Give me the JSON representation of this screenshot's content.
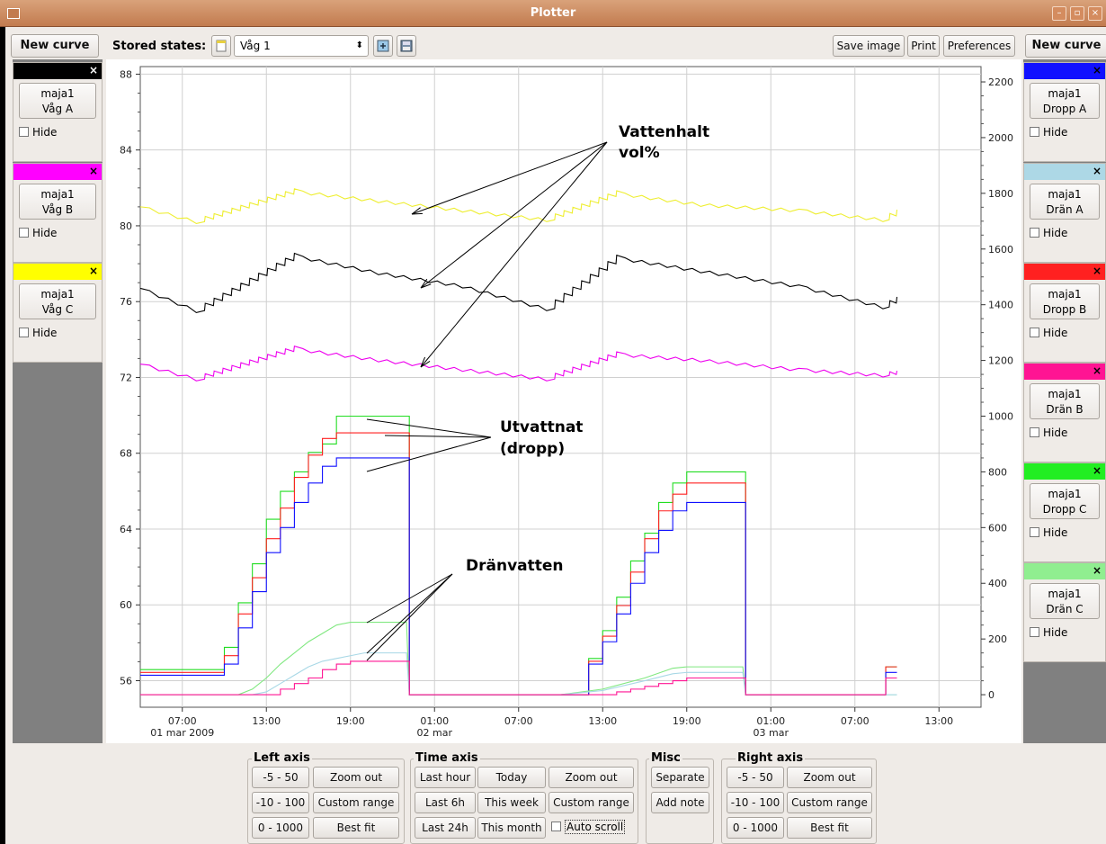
{
  "window": {
    "title": "Plotter"
  },
  "toolbar": {
    "new_curve_left": "New curve",
    "stored_states_label": "Stored states:",
    "stored_state_value": "Våg 1",
    "save_image": "Save image",
    "print": "Print",
    "preferences": "Preferences",
    "new_curve_right": "New curve"
  },
  "left_curves": [
    {
      "line1": "maja1",
      "line2": "Våg A",
      "hide": "Hide",
      "color": "#000000",
      "close": "×"
    },
    {
      "line1": "maja1",
      "line2": "Våg B",
      "hide": "Hide",
      "color": "#ff00ff",
      "close": "×"
    },
    {
      "line1": "maja1",
      "line2": "Våg C",
      "hide": "Hide",
      "color": "#ffff00",
      "close": "×"
    }
  ],
  "right_curves": [
    {
      "line1": "maja1",
      "line2": "Dropp A",
      "hide": "Hide",
      "color": "#1010ff",
      "close": "×"
    },
    {
      "line1": "maja1",
      "line2": "Drän A",
      "hide": "Hide",
      "color": "#add8e6",
      "close": "×"
    },
    {
      "line1": "maja1",
      "line2": "Dropp B",
      "hide": "Hide",
      "color": "#ff2020",
      "close": "×"
    },
    {
      "line1": "maja1",
      "line2": "Drän B",
      "hide": "Hide",
      "color": "#ff1493",
      "close": "×"
    },
    {
      "line1": "maja1",
      "line2": "Dropp C",
      "hide": "Hide",
      "color": "#22ee22",
      "close": "×"
    },
    {
      "line1": "maja1",
      "line2": "Drän C",
      "hide": "Hide",
      "color": "#90ee90",
      "close": "×"
    }
  ],
  "chart_data": {
    "type": "line",
    "title": "",
    "xlabel": "",
    "ylabel": "",
    "x_ticks": [
      {
        "t": 0,
        "line1": "07:00",
        "line2": "01 mar 2009"
      },
      {
        "t": 6,
        "line1": "13:00",
        "line2": ""
      },
      {
        "t": 12,
        "line1": "19:00",
        "line2": ""
      },
      {
        "t": 18,
        "line1": "01:00",
        "line2": "02 mar"
      },
      {
        "t": 24,
        "line1": "07:00",
        "line2": ""
      },
      {
        "t": 30,
        "line1": "13:00",
        "line2": ""
      },
      {
        "t": 36,
        "line1": "19:00",
        "line2": ""
      },
      {
        "t": 42,
        "line1": "01:00",
        "line2": "03 mar"
      },
      {
        "t": 48,
        "line1": "07:00",
        "line2": ""
      },
      {
        "t": 54,
        "line1": "13:00",
        "line2": ""
      }
    ],
    "xlim": [
      -3,
      57
    ],
    "left_ticks": [
      "88",
      "84",
      "80",
      "76",
      "72",
      "68",
      "64",
      "60",
      "56"
    ],
    "left_tick_values": [
      88,
      84,
      80,
      76,
      72,
      68,
      64,
      60,
      56
    ],
    "ylim_left": [
      54.6,
      88.4
    ],
    "right_ticks": [
      "2200",
      "2000",
      "1800",
      "1600",
      "1400",
      "1200",
      "1000",
      "800",
      "600",
      "400",
      "200",
      "0"
    ],
    "right_tick_values": [
      2200,
      2000,
      1800,
      1600,
      1400,
      1200,
      1000,
      800,
      600,
      400,
      200,
      0
    ],
    "ylim_right": [
      -45,
      2255
    ],
    "series": [
      {
        "name": "Våg A",
        "axis": "left",
        "color": "#000000",
        "style": "saw",
        "x": [
          -3,
          1,
          8,
          14,
          20,
          26,
          31,
          37,
          44,
          50,
          51
        ],
        "y": [
          76.7,
          75.5,
          78.4,
          77.5,
          76.8,
          75.6,
          78.3,
          77.6,
          76.8,
          75.7,
          76.1
        ]
      },
      {
        "name": "Våg B",
        "axis": "left",
        "color": "#ee00ee",
        "style": "saw",
        "x": [
          -3,
          1,
          8,
          14,
          20,
          26,
          31,
          37,
          44,
          50,
          51
        ],
        "y": [
          72.7,
          71.9,
          73.5,
          72.9,
          72.4,
          71.9,
          73.2,
          72.9,
          72.4,
          72.1,
          72.2
        ]
      },
      {
        "name": "Våg C",
        "axis": "left",
        "color": "#eeee30",
        "style": "saw",
        "x": [
          -3,
          1,
          8,
          14,
          20,
          26,
          31,
          37,
          44,
          50,
          51
        ],
        "y": [
          81.0,
          80.2,
          81.8,
          81.3,
          80.8,
          80.3,
          81.7,
          81.1,
          80.8,
          80.3,
          80.7
        ]
      },
      {
        "name": "Dropp C",
        "axis": "right",
        "color": "#22dd22",
        "style": "step",
        "x": [
          -3,
          2,
          3,
          4,
          5,
          6,
          7,
          8,
          9,
          10,
          11,
          12,
          16,
          16.2,
          20,
          28,
          29,
          30,
          31,
          32,
          33,
          34,
          35,
          36,
          40,
          40.2,
          50,
          50.2,
          51
        ],
        "y": [
          90,
          90,
          170,
          330,
          470,
          630,
          730,
          800,
          870,
          900,
          1000,
          1000,
          1000,
          0,
          0,
          0,
          130,
          230,
          350,
          480,
          580,
          690,
          760,
          800,
          800,
          0,
          0,
          100,
          100
        ]
      },
      {
        "name": "Dropp B",
        "axis": "right",
        "color": "#ff2020",
        "style": "step",
        "x": [
          -3,
          2,
          3,
          4,
          5,
          6,
          7,
          8,
          9,
          10,
          11,
          12,
          16,
          16.2,
          20,
          28,
          29,
          30,
          31,
          32,
          33,
          34,
          35,
          36,
          40,
          40.2,
          50,
          50.2,
          51
        ],
        "y": [
          80,
          80,
          140,
          290,
          420,
          560,
          670,
          780,
          860,
          920,
          940,
          940,
          940,
          0,
          0,
          0,
          120,
          210,
          320,
          440,
          560,
          660,
          720,
          760,
          760,
          0,
          0,
          100,
          100
        ]
      },
      {
        "name": "Dropp A",
        "axis": "right",
        "color": "#1010ff",
        "style": "step",
        "x": [
          -3,
          2,
          3,
          4,
          5,
          6,
          7,
          8,
          9,
          10,
          11,
          12,
          16,
          16.2,
          20,
          28,
          29,
          30,
          31,
          32,
          33,
          34,
          35,
          36,
          40,
          40.2,
          50,
          50.2,
          51
        ],
        "y": [
          70,
          70,
          110,
          240,
          370,
          510,
          600,
          690,
          760,
          820,
          850,
          850,
          850,
          0,
          0,
          0,
          110,
          190,
          290,
          400,
          510,
          590,
          660,
          690,
          690,
          0,
          0,
          80,
          80
        ]
      },
      {
        "name": "Drän C",
        "axis": "right",
        "color": "#80e880",
        "style": "curve",
        "x": [
          -3,
          4,
          5,
          6,
          7,
          8,
          9,
          10,
          11,
          12,
          13,
          14,
          15,
          16,
          16.2,
          20,
          27,
          30,
          33,
          35,
          36,
          40,
          40.2,
          51
        ],
        "y": [
          0,
          0,
          20,
          60,
          110,
          150,
          190,
          220,
          250,
          260,
          260,
          260,
          260,
          260,
          0,
          0,
          0,
          20,
          60,
          95,
          100,
          100,
          0,
          0
        ]
      },
      {
        "name": "Drän A",
        "axis": "right",
        "color": "#a8d8e6",
        "style": "curve",
        "x": [
          -3,
          5,
          6,
          7,
          8,
          9,
          10,
          11,
          12,
          13,
          14,
          15,
          16,
          16.2,
          20,
          27,
          30,
          33,
          35,
          36,
          40,
          40.2,
          51
        ],
        "y": [
          0,
          0,
          10,
          40,
          70,
          100,
          120,
          130,
          140,
          150,
          150,
          150,
          150,
          0,
          0,
          0,
          15,
          50,
          75,
          80,
          80,
          0,
          0
        ]
      },
      {
        "name": "Drän B",
        "axis": "right",
        "color": "#ff1493",
        "style": "step",
        "x": [
          -3,
          6,
          7,
          8,
          9,
          10,
          11,
          12,
          13,
          14,
          15,
          16,
          16.2,
          20,
          30,
          31,
          32,
          33,
          34,
          35,
          36,
          40,
          40.2,
          50,
          50.2,
          51
        ],
        "y": [
          0,
          0,
          20,
          40,
          60,
          90,
          110,
          120,
          120,
          120,
          120,
          120,
          0,
          0,
          0,
          10,
          20,
          30,
          40,
          50,
          60,
          60,
          0,
          0,
          60,
          60
        ]
      }
    ],
    "annotations": [
      {
        "text_lines": [
          "Vattenhalt",
          "vol%"
        ]
      },
      {
        "text_lines": [
          "Utvattnat",
          "(dropp)"
        ]
      },
      {
        "text_lines": [
          "Dränvatten"
        ]
      }
    ]
  },
  "bottom": {
    "left_axis": {
      "title": "Left axis",
      "b1": "-5 - 50",
      "b2": "Zoom out",
      "b3": "-10 - 100",
      "b4": "Custom range",
      "b5": "0 - 1000",
      "b6": "Best fit"
    },
    "time_axis": {
      "title": "Time axis",
      "b1": "Last hour",
      "b2": "Today",
      "b3": "Zoom out",
      "b4": "Last 6h",
      "b5": "This week",
      "b6": "Custom range",
      "b7": "Last 24h",
      "b8": "This month",
      "auto": "Auto scroll"
    },
    "misc": {
      "title": "Misc",
      "b1": "Separate",
      "b2": "Add note"
    },
    "right_axis": {
      "title": "Right axis",
      "b1": "-5 - 50",
      "b2": "Zoom out",
      "b3": "-10 - 100",
      "b4": "Custom range",
      "b5": "0 - 1000",
      "b6": "Best fit"
    }
  }
}
